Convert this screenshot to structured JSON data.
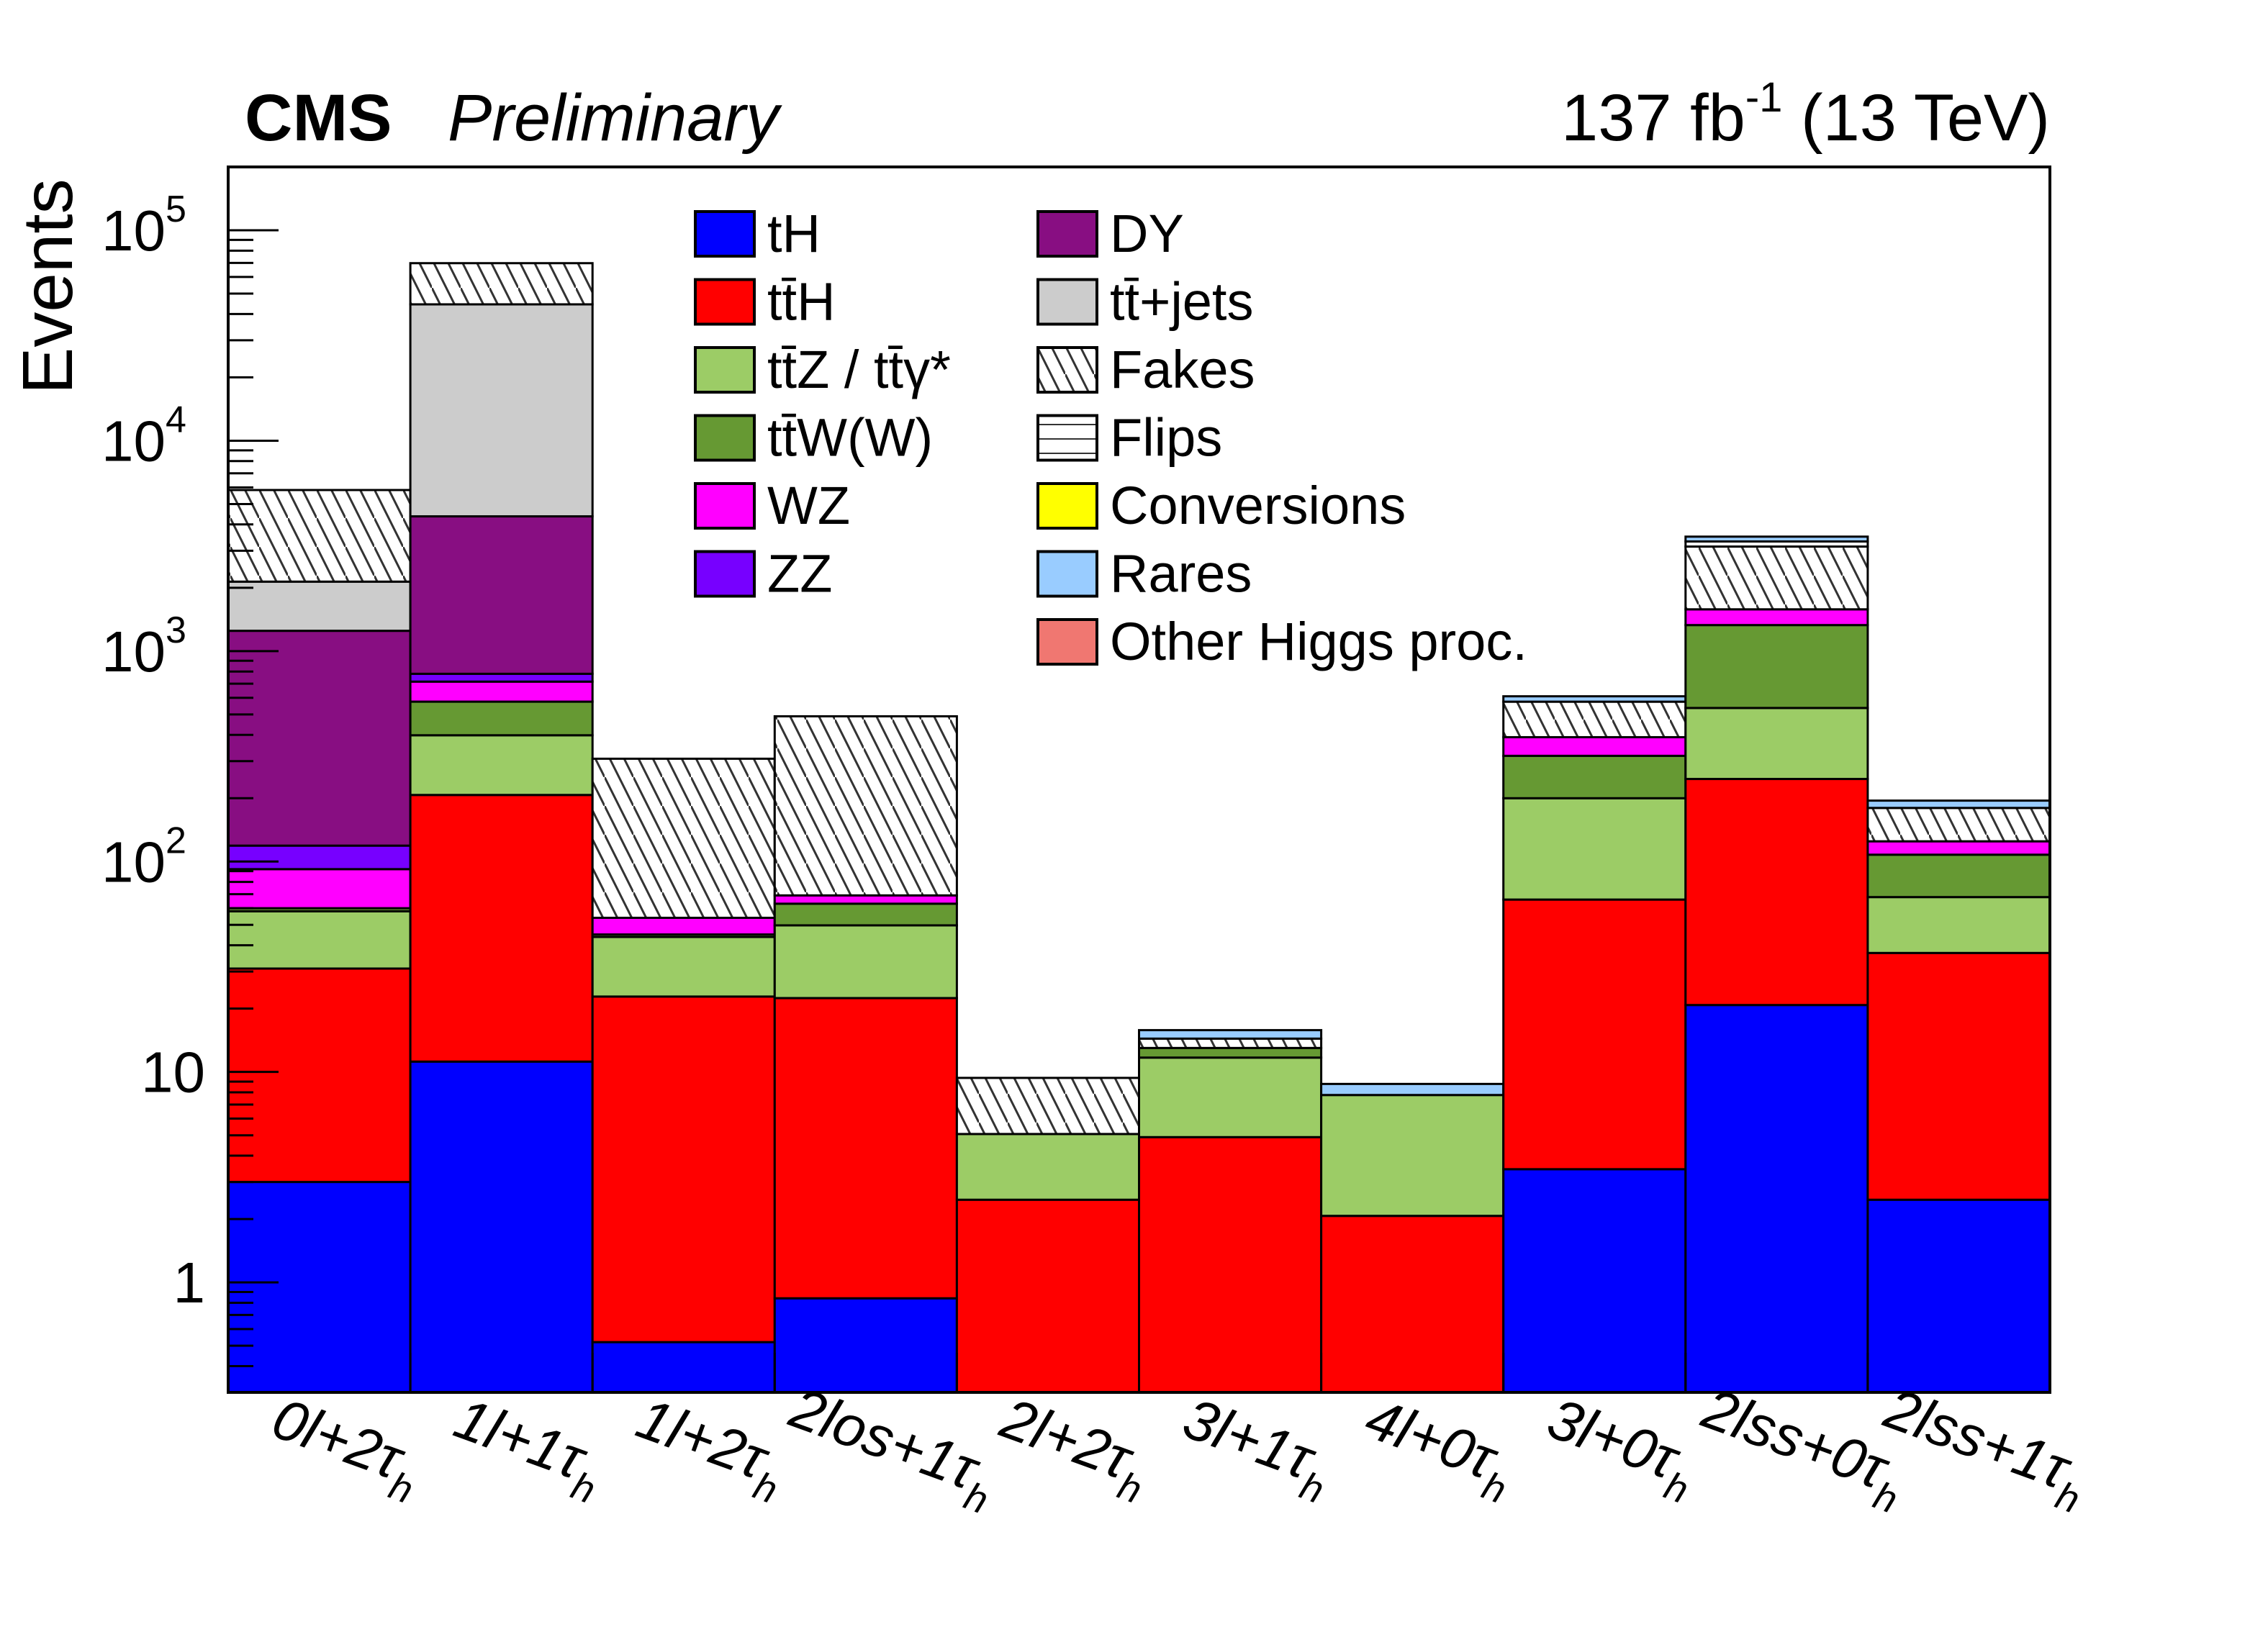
{
  "header": {
    "experiment": "CMS",
    "status": "Preliminary",
    "lumi_main": "137 fb",
    "lumi_exp": "-1",
    "lumi_energy": " (13 TeV)"
  },
  "chart_data": {
    "type": "bar",
    "stacked": true,
    "yscale": "log",
    "ylabel": "Events",
    "xlabel": "",
    "ylim": [
      0.3,
      200000
    ],
    "yticks": [
      {
        "v": 1,
        "base": "1",
        "exp": ""
      },
      {
        "v": 10,
        "base": "10",
        "exp": ""
      },
      {
        "v": 100,
        "base": "10",
        "exp": "2"
      },
      {
        "v": 1000,
        "base": "10",
        "exp": "3"
      },
      {
        "v": 10000,
        "base": "10",
        "exp": "4"
      },
      {
        "v": 100000,
        "base": "10",
        "exp": "5"
      }
    ],
    "categories": [
      {
        "main": "0l+2τ",
        "sub": "h"
      },
      {
        "main": "1l+1τ",
        "sub": "h"
      },
      {
        "main": "1l+2τ",
        "sub": "h"
      },
      {
        "main": "2los+1τ",
        "sub": "h"
      },
      {
        "main": "2l+2τ",
        "sub": "h"
      },
      {
        "main": "3l+1τ",
        "sub": "h"
      },
      {
        "main": "4l+0τ",
        "sub": "h"
      },
      {
        "main": "3l+0τ",
        "sub": "h"
      },
      {
        "main": "2lss+0τ",
        "sub": "h"
      },
      {
        "main": "2lss+1τ",
        "sub": "h"
      }
    ],
    "legend_position": "top-center",
    "series": [
      {
        "name": "tH",
        "color": "#0000ff",
        "fill": "solid",
        "values": [
          3.0,
          11.2,
          0.52,
          0.84,
          0,
          0,
          0,
          3.45,
          20.8,
          2.47
        ]
      },
      {
        "name": "tt̄H",
        "color": "#ff0000",
        "fill": "solid",
        "values": [
          28,
          196,
          22.3,
          21.6,
          2.47,
          4.9,
          2.07,
          62.5,
          226,
          34.3
        ]
      },
      {
        "name": "tt̄Z / tt̄γ*",
        "color": "#9ccc66",
        "fill": "solid",
        "values": [
          27,
          191,
          21,
          27.3,
          2.6,
          6.8,
          5.7,
          134,
          290,
          31
        ]
      },
      {
        "name": "tt̄W(W)",
        "color": "#669933",
        "fill": "solid",
        "values": [
          2,
          177,
          1.2,
          13.3,
          0,
          1.3,
          0,
          118,
          793,
          40
        ]
      },
      {
        "name": "WZ",
        "color": "#ff00ff",
        "fill": "solid",
        "values": [
          32,
          141,
          9,
          6,
          0,
          0,
          0,
          72,
          250,
          17
        ]
      },
      {
        "name": "ZZ",
        "color": "#7700ff",
        "fill": "solid",
        "values": [
          27,
          64,
          0,
          0,
          0,
          0,
          0,
          0,
          0,
          0
        ]
      },
      {
        "name": "DY",
        "color": "#880e82",
        "fill": "solid",
        "values": [
          1130,
          3590,
          0,
          0,
          0,
          0,
          0,
          0,
          0,
          0
        ]
      },
      {
        "name": "tt̄+jets",
        "color": "#cccccc",
        "fill": "solid",
        "values": [
          890,
          40100,
          0,
          0,
          0,
          0,
          0,
          0,
          0,
          0
        ]
      },
      {
        "name": "Fakes",
        "color": "#ffffff",
        "fill": "hatch-diagonal",
        "values": [
          3690,
          25300,
          254,
          421,
          4.3,
          1.4,
          0,
          185,
          1560,
          55
        ]
      },
      {
        "name": "Flips",
        "color": "#ffffff",
        "fill": "hatch-horizontal",
        "values": [
          0,
          0,
          0,
          0,
          0,
          0,
          0,
          0,
          180,
          0
        ]
      },
      {
        "name": "Conversions",
        "color": "#ffff00",
        "fill": "solid",
        "values": [
          0,
          0,
          0,
          0,
          0,
          0,
          0,
          0,
          0,
          0
        ]
      },
      {
        "name": "Rares",
        "color": "#99ccff",
        "fill": "solid",
        "values": [
          0,
          0,
          0,
          0,
          0,
          1.4,
          1.0,
          35,
          180,
          15
        ]
      },
      {
        "name": "Other Higgs proc.",
        "color": "#f07771",
        "fill": "solid",
        "values": [
          0,
          0,
          0,
          0,
          0,
          0,
          0,
          0,
          0,
          0
        ]
      }
    ]
  }
}
